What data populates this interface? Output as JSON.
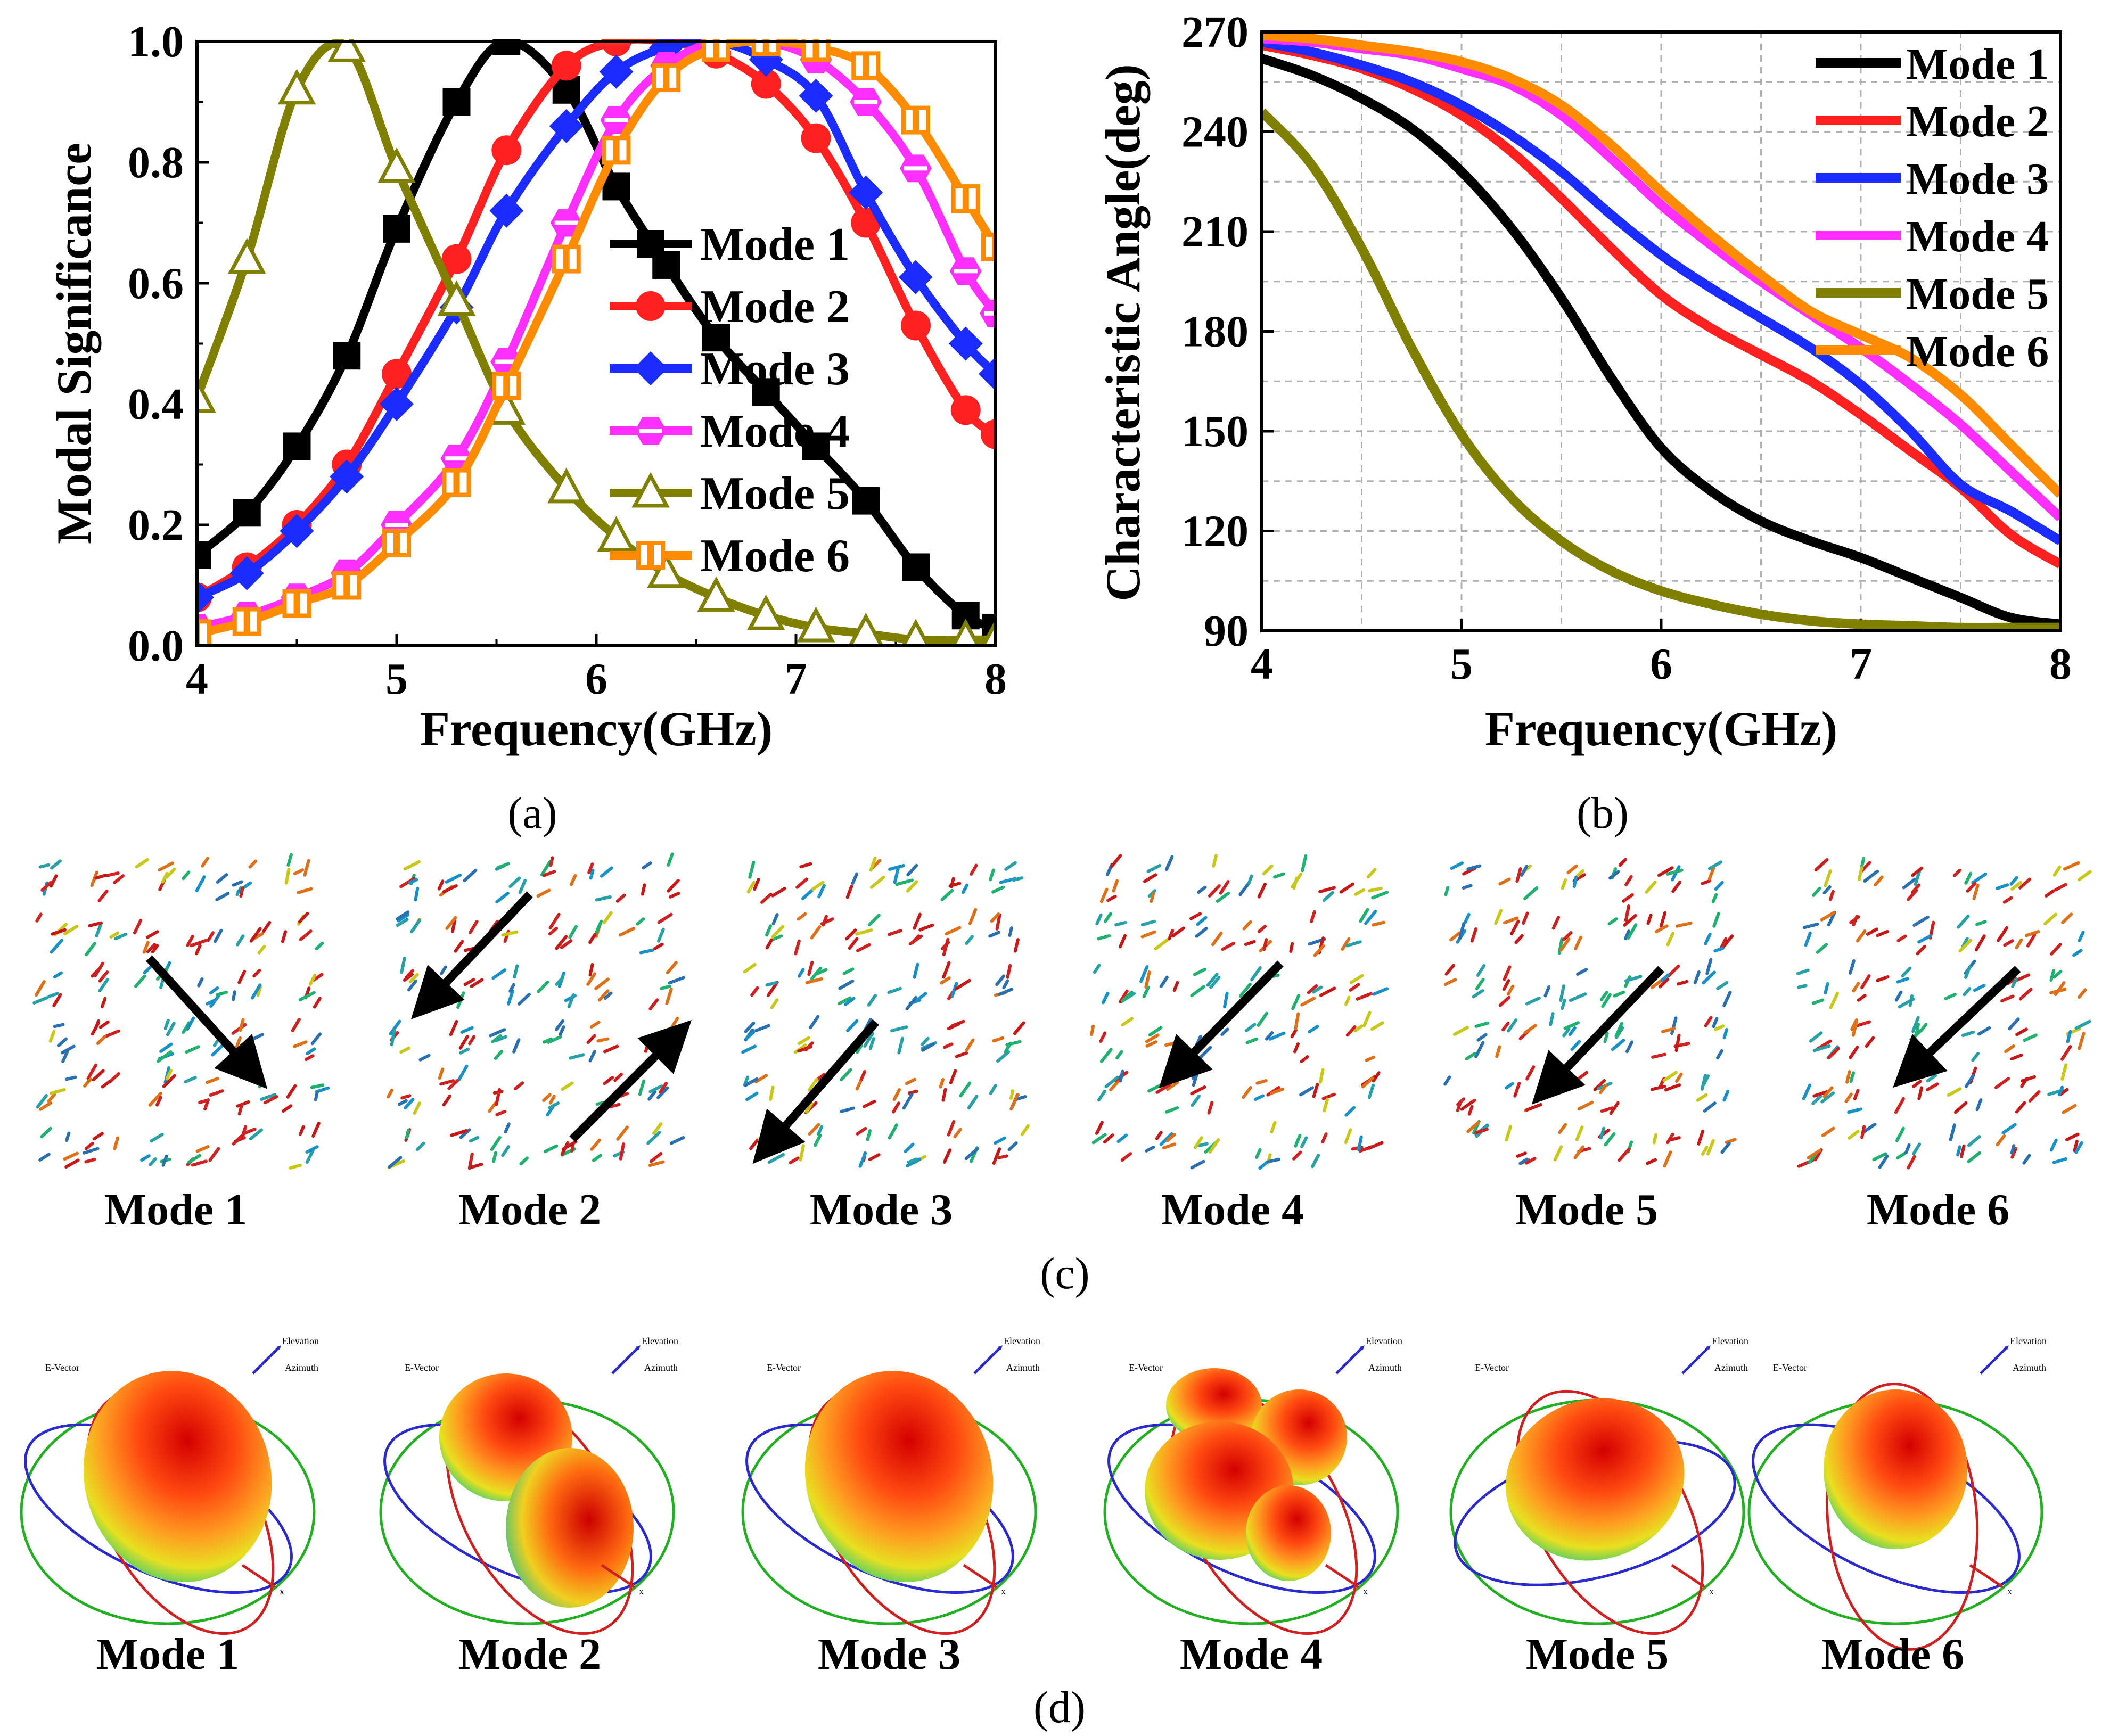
{
  "figure": {
    "panels": [
      {
        "id": "a",
        "label": "(a)"
      },
      {
        "id": "b",
        "label": "(b)"
      },
      {
        "id": "c",
        "label": "(c)"
      },
      {
        "id": "d",
        "label": "(d)"
      }
    ]
  },
  "colors": {
    "mode1": "#000000",
    "mode2": "#ff2020",
    "mode3": "#1a2cff",
    "mode4": "#ff30ff",
    "mode5": "#7f7f00",
    "mode6": "#ff8c00"
  },
  "chart_data": [
    {
      "id": "a",
      "type": "line",
      "title": "",
      "xlabel": "Frequency(GHz)",
      "ylabel": "Modal Significance",
      "xlim": [
        4,
        8
      ],
      "ylim": [
        0,
        1.0
      ],
      "xticks": [
        "4",
        "5",
        "6",
        "7",
        "8"
      ],
      "yticks": [
        "0.0",
        "0.2",
        "0.4",
        "0.6",
        "0.8",
        "1.0"
      ],
      "legend_position": "right",
      "series": [
        {
          "name": "Mode 1",
          "marker": "square",
          "x": [
            4.0,
            4.25,
            4.5,
            4.75,
            5.0,
            5.3,
            5.55,
            5.85,
            6.1,
            6.35,
            6.6,
            6.85,
            7.1,
            7.35,
            7.6,
            7.85,
            8.0
          ],
          "y": [
            0.15,
            0.22,
            0.33,
            0.48,
            0.69,
            0.9,
            1.0,
            0.92,
            0.76,
            0.63,
            0.51,
            0.42,
            0.33,
            0.24,
            0.13,
            0.05,
            0.03
          ]
        },
        {
          "name": "Mode 2",
          "marker": "circle",
          "x": [
            4.0,
            4.25,
            4.5,
            4.75,
            5.0,
            5.3,
            5.55,
            5.85,
            6.1,
            6.35,
            6.6,
            6.85,
            7.1,
            7.35,
            7.6,
            7.85,
            8.0
          ],
          "y": [
            0.08,
            0.13,
            0.2,
            0.3,
            0.45,
            0.64,
            0.82,
            0.96,
            1.0,
            1.0,
            0.98,
            0.93,
            0.84,
            0.7,
            0.53,
            0.39,
            0.35
          ]
        },
        {
          "name": "Mode 3",
          "marker": "diamond",
          "x": [
            4.0,
            4.25,
            4.5,
            4.75,
            5.0,
            5.3,
            5.55,
            5.85,
            6.1,
            6.35,
            6.6,
            6.85,
            7.1,
            7.35,
            7.6,
            7.85,
            8.0
          ],
          "y": [
            0.08,
            0.12,
            0.19,
            0.28,
            0.4,
            0.56,
            0.72,
            0.86,
            0.95,
            0.99,
            1.0,
            0.97,
            0.91,
            0.75,
            0.61,
            0.5,
            0.45
          ]
        },
        {
          "name": "Mode 4",
          "marker": "hexagon",
          "x": [
            4.0,
            4.25,
            4.5,
            4.75,
            5.0,
            5.3,
            5.55,
            5.85,
            6.1,
            6.35,
            6.6,
            6.85,
            7.1,
            7.35,
            7.6,
            7.85,
            8.0
          ],
          "y": [
            0.03,
            0.05,
            0.08,
            0.12,
            0.2,
            0.31,
            0.47,
            0.7,
            0.87,
            0.96,
            1.0,
            1.0,
            0.97,
            0.9,
            0.79,
            0.62,
            0.55
          ]
        },
        {
          "name": "Mode 5",
          "marker": "triangle",
          "x": [
            4.0,
            4.25,
            4.5,
            4.75,
            5.0,
            5.3,
            5.55,
            5.85,
            6.1,
            6.35,
            6.6,
            6.85,
            7.1,
            7.35,
            7.6,
            7.85,
            8.0
          ],
          "y": [
            0.41,
            0.64,
            0.92,
            0.99,
            0.79,
            0.57,
            0.39,
            0.26,
            0.18,
            0.12,
            0.08,
            0.05,
            0.03,
            0.02,
            0.01,
            0.01,
            0.01
          ]
        },
        {
          "name": "Mode 6",
          "marker": "half-square",
          "x": [
            4.0,
            4.25,
            4.5,
            4.75,
            5.0,
            5.3,
            5.55,
            5.85,
            6.1,
            6.35,
            6.6,
            6.85,
            7.1,
            7.35,
            7.6,
            7.85,
            8.0
          ],
          "y": [
            0.02,
            0.04,
            0.07,
            0.1,
            0.17,
            0.27,
            0.43,
            0.64,
            0.82,
            0.94,
            0.99,
            1.0,
            0.99,
            0.96,
            0.87,
            0.74,
            0.66
          ]
        }
      ]
    },
    {
      "id": "b",
      "type": "line",
      "title": "",
      "xlabel": "Frequency(GHz)",
      "ylabel": "Characteristic Angle(deg)",
      "xlim": [
        4,
        8
      ],
      "ylim": [
        90,
        270
      ],
      "xticks": [
        "4",
        "5",
        "6",
        "7",
        "8"
      ],
      "yticks": [
        "90",
        "120",
        "150",
        "180",
        "210",
        "240",
        "270"
      ],
      "grid": true,
      "legend_position": "top-right",
      "series": [
        {
          "name": "Mode 1",
          "x": [
            4.0,
            4.25,
            4.5,
            4.75,
            5.0,
            5.25,
            5.5,
            5.75,
            6.0,
            6.25,
            6.5,
            6.75,
            7.0,
            7.25,
            7.5,
            7.75,
            8.0
          ],
          "y": [
            262,
            257,
            250,
            241,
            228,
            211,
            190,
            166,
            145,
            132,
            123,
            117,
            112,
            106,
            100,
            94,
            92
          ]
        },
        {
          "name": "Mode 2",
          "x": [
            4.0,
            4.25,
            4.5,
            4.75,
            5.0,
            5.25,
            5.5,
            5.75,
            6.0,
            6.25,
            6.5,
            6.75,
            7.0,
            7.25,
            7.5,
            7.75,
            8.0
          ],
          "y": [
            266,
            263,
            259,
            253,
            245,
            234,
            220,
            205,
            191,
            181,
            173,
            165,
            155,
            144,
            133,
            119,
            110
          ]
        },
        {
          "name": "Mode 3",
          "x": [
            4.0,
            4.25,
            4.5,
            4.75,
            5.0,
            5.25,
            5.5,
            5.75,
            6.0,
            6.25,
            6.5,
            6.75,
            7.0,
            7.25,
            7.5,
            7.75,
            8.0
          ],
          "y": [
            267,
            264,
            260,
            255,
            248,
            239,
            228,
            215,
            203,
            193,
            184,
            175,
            164,
            150,
            134,
            126,
            117
          ]
        },
        {
          "name": "Mode 4",
          "x": [
            4.0,
            4.25,
            4.5,
            4.75,
            5.0,
            5.25,
            5.5,
            5.75,
            6.0,
            6.25,
            6.5,
            6.75,
            7.0,
            7.25,
            7.5,
            7.75,
            8.0
          ],
          "y": [
            268,
            267,
            265,
            263,
            259,
            254,
            245,
            232,
            218,
            206,
            195,
            185,
            175,
            164,
            152,
            138,
            124
          ]
        },
        {
          "name": "Mode 5",
          "x": [
            4.0,
            4.25,
            4.5,
            4.75,
            5.0,
            5.25,
            5.5,
            5.75,
            6.0,
            6.25,
            6.5,
            6.75,
            7.0,
            7.25,
            7.5,
            7.75,
            8.0
          ],
          "y": [
            246,
            230,
            205,
            175,
            149,
            130,
            117,
            108,
            102,
            98,
            95,
            93,
            92,
            91.5,
            91,
            91,
            91
          ]
        },
        {
          "name": "Mode 6",
          "x": [
            4.0,
            4.25,
            4.5,
            4.75,
            5.0,
            5.25,
            5.5,
            5.75,
            6.0,
            6.25,
            6.5,
            6.75,
            7.0,
            7.25,
            7.5,
            7.75,
            8.0
          ],
          "y": [
            269,
            268,
            266,
            264,
            261,
            256,
            248,
            236,
            222,
            209,
            197,
            186,
            179,
            172,
            161,
            146,
            131
          ]
        }
      ]
    }
  ],
  "panel_c": {
    "labels": [
      "Mode 1",
      "Mode 2",
      "Mode 3",
      "Mode 4",
      "Mode 5",
      "Mode 6"
    ]
  },
  "panel_d": {
    "labels": [
      "Mode 1",
      "Mode 2",
      "Mode 3",
      "Mode 4",
      "Mode 5",
      "Mode 6"
    ],
    "axis_labels": {
      "elevation": "Elevation",
      "azimuth": "Azimuth",
      "evector": "E-Vector",
      "x": "x",
      "z": "z"
    }
  }
}
